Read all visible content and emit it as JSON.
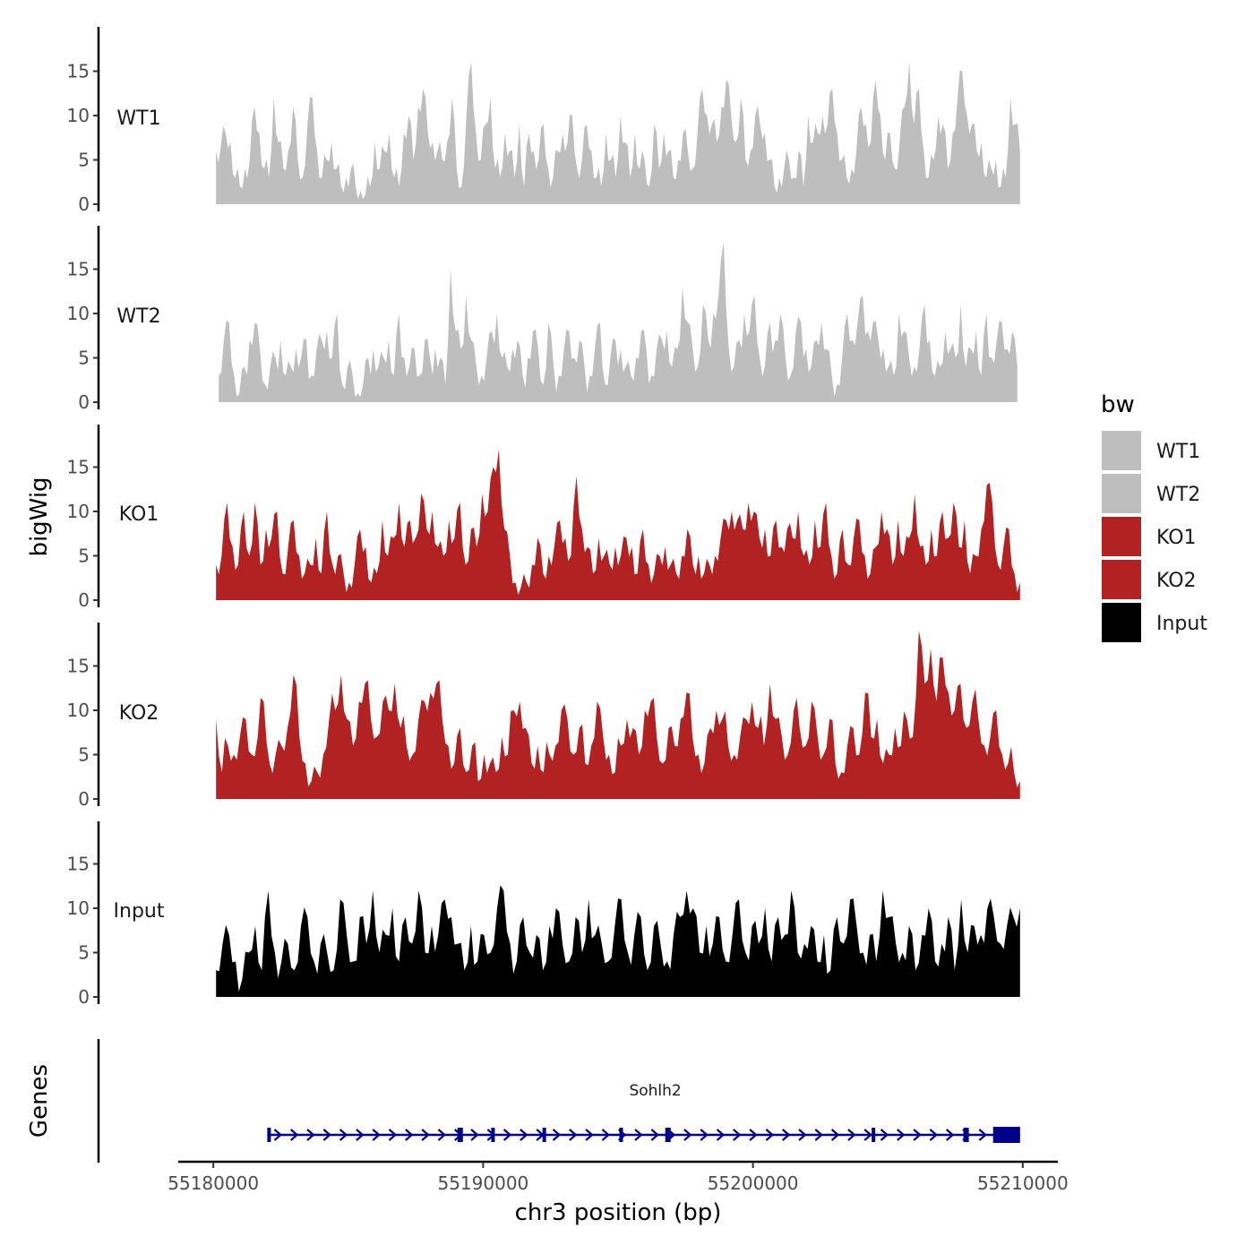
{
  "chart_data": {
    "type": "area",
    "title": "",
    "xlabel": "chr3 position (bp)",
    "ylabel": "bigWig",
    "genes_label": "Genes",
    "xlim": [
      55178700,
      55211300
    ],
    "ylim": [
      0,
      20
    ],
    "x_ticks": [
      55180000,
      55190000,
      55200000,
      55210000
    ],
    "x_tick_labels": [
      "55180000",
      "55190000",
      "55200000",
      "55210000"
    ],
    "y_ticks": [
      0,
      5,
      10,
      15
    ],
    "y_tick_labels": [
      "0",
      "5",
      "10",
      "15"
    ],
    "legend": {
      "title": "bw",
      "position": "right",
      "entries": [
        {
          "label": "WT1",
          "color": "#bebebe"
        },
        {
          "label": "WT2",
          "color": "#bebebe"
        },
        {
          "label": "KO1",
          "color": "#b22222"
        },
        {
          "label": "KO2",
          "color": "#b22222"
        },
        {
          "label": "Input",
          "color": "#000000"
        }
      ]
    },
    "series": [
      {
        "name": "WT1",
        "color": "#bebebe",
        "x_start": 55180100,
        "x_end": 55209900,
        "values": [
          6,
          6.5,
          8,
          7,
          3,
          2,
          4,
          5,
          11,
          8,
          4,
          3,
          12,
          7,
          4,
          6,
          11,
          5,
          3,
          9,
          12,
          6,
          3,
          5,
          7,
          4,
          2,
          3,
          4,
          2,
          1.5,
          1,
          2,
          7,
          4,
          6,
          8,
          3,
          2,
          8,
          10,
          5,
          11,
          13,
          8,
          7,
          6,
          5,
          7,
          12,
          4,
          2,
          10,
          16,
          8,
          5,
          9,
          12,
          4,
          3,
          8,
          6,
          3,
          9,
          2,
          8,
          6,
          5,
          9,
          4,
          3,
          6,
          8,
          7,
          10,
          4,
          5,
          9,
          6,
          3,
          2,
          8,
          5,
          3,
          10,
          7,
          3,
          8,
          4,
          5,
          2,
          9,
          4,
          8,
          6,
          3,
          5,
          8,
          6,
          4,
          8,
          13,
          10,
          9,
          7,
          11,
          14,
          10,
          7,
          12,
          5,
          6,
          10,
          9,
          8,
          5,
          2,
          3,
          4,
          5,
          3,
          6,
          2,
          10,
          7,
          8,
          10,
          9,
          13,
          8,
          5,
          3,
          4,
          6,
          11,
          9,
          7,
          14,
          10,
          5,
          8,
          4,
          7,
          11,
          16,
          9,
          13,
          6,
          3,
          5,
          10,
          9,
          4,
          8,
          12,
          15,
          10,
          9,
          6,
          7,
          3,
          4,
          5,
          2,
          3,
          12,
          9,
          6
        ],
        "noise": [
          2,
          2,
          1.5,
          2,
          2,
          1.5,
          3,
          2,
          1.5,
          2,
          2,
          1.5
        ]
      },
      {
        "name": "WT2",
        "color": "#bebebe",
        "x_start": 55180200,
        "x_end": 55209800,
        "values": [
          3,
          7,
          9,
          3,
          1,
          4,
          7,
          9,
          6,
          2,
          4,
          5,
          7,
          3,
          4,
          6,
          5,
          7,
          3,
          6,
          7,
          8,
          5,
          10,
          2,
          4,
          3,
          1,
          2,
          5,
          6,
          4,
          5,
          7,
          3,
          10,
          5,
          4,
          6,
          3,
          7,
          5,
          6,
          5,
          2,
          15,
          8,
          6,
          12,
          7,
          4,
          3,
          5,
          8,
          10,
          5,
          4,
          6,
          7,
          3,
          5,
          8,
          6,
          2,
          9,
          4,
          3,
          6,
          8,
          5,
          7,
          4,
          3,
          6,
          9,
          2,
          5,
          7,
          6,
          4,
          3,
          5,
          8,
          6,
          3,
          6,
          7,
          8,
          4,
          6,
          13,
          9,
          6,
          4,
          11,
          7,
          10,
          12,
          18,
          6,
          4,
          7,
          10,
          8,
          12,
          5,
          4,
          9,
          7,
          10,
          5,
          3,
          8,
          9,
          6,
          4,
          7,
          9,
          6,
          3,
          2,
          5,
          10,
          7,
          9,
          12,
          8,
          9,
          7,
          6,
          4,
          3,
          10,
          8,
          5,
          4,
          6,
          11,
          7,
          3,
          4,
          8,
          6,
          5,
          11,
          4,
          6,
          8,
          3,
          10,
          5,
          7,
          9,
          6,
          8,
          4
        ],
        "noise": [
          1.5,
          2,
          2,
          1.5,
          3,
          2,
          1.5,
          2,
          2,
          1.5,
          2,
          3
        ]
      },
      {
        "name": "KO1",
        "color": "#b22222",
        "x_start": 55180100,
        "x_end": 55209900,
        "values": [
          4,
          5,
          11,
          6,
          4,
          10,
          5,
          11,
          4,
          8,
          7,
          10,
          3,
          6,
          9,
          5,
          3,
          4,
          7,
          3,
          10,
          4,
          5,
          3,
          2,
          4,
          8,
          6,
          2,
          3,
          9,
          5,
          7,
          11,
          6,
          9,
          7,
          12,
          8,
          10,
          6,
          5,
          9,
          7,
          11,
          4,
          8,
          6,
          12,
          10,
          15,
          17,
          8,
          5,
          2,
          1.5,
          2,
          4,
          7,
          3,
          5,
          6,
          9,
          7,
          5,
          14,
          8,
          6,
          3,
          7,
          5,
          4,
          6,
          5,
          7,
          6,
          3,
          8,
          4,
          3,
          5,
          6,
          4,
          3,
          5,
          8,
          4,
          5,
          3,
          4,
          5,
          7,
          9,
          10,
          9,
          8,
          11,
          10,
          7,
          8,
          5,
          9,
          6,
          8,
          7,
          10,
          5,
          4,
          9,
          6,
          11,
          5,
          3,
          8,
          4,
          7,
          9,
          5,
          3,
          6,
          10,
          8,
          4,
          9,
          5,
          7,
          12,
          6,
          4,
          8,
          5,
          10,
          7,
          11,
          6,
          9,
          3,
          5,
          8,
          13,
          11,
          4,
          6,
          8,
          3,
          2
        ],
        "noise": [
          2,
          2,
          3,
          1.5,
          2,
          2,
          1.5,
          2,
          3,
          1.5,
          2,
          2
        ]
      },
      {
        "name": "KO2",
        "color": "#b22222",
        "x_start": 55180100,
        "x_end": 55209900,
        "values": [
          9,
          3,
          6,
          5,
          7,
          9,
          5,
          7,
          11,
          4,
          5,
          6,
          8,
          14,
          7,
          4,
          2,
          3,
          5,
          9,
          10,
          14,
          9,
          6,
          11,
          13,
          9,
          7,
          11,
          10,
          13,
          8,
          6,
          5,
          9,
          11,
          12,
          13,
          9,
          6,
          4,
          8,
          3,
          6,
          2,
          5,
          4,
          3,
          7,
          5,
          10,
          11,
          8,
          4,
          6,
          3,
          5,
          6,
          10,
          9,
          5,
          8,
          4,
          6,
          11,
          7,
          5,
          3,
          6,
          9,
          8,
          5,
          10,
          11,
          7,
          4,
          8,
          6,
          9,
          12,
          7,
          5,
          4,
          8,
          10,
          9,
          6,
          5,
          7,
          9,
          11,
          8,
          6,
          13,
          9,
          7,
          5,
          10,
          8,
          6,
          11,
          7,
          5,
          9,
          4,
          3,
          6,
          8,
          5,
          12,
          7,
          9,
          4,
          5,
          8,
          6,
          9,
          7,
          19,
          13,
          17,
          11,
          16,
          12,
          10,
          13,
          8,
          11,
          9,
          6,
          7,
          10,
          5,
          4,
          3,
          2
        ],
        "noise": [
          2,
          1.5,
          2,
          3,
          2,
          1.5,
          2,
          2,
          3,
          1.5,
          2,
          2
        ]
      },
      {
        "name": "Input",
        "color": "#000000",
        "x_start": 55180100,
        "x_end": 55209900,
        "values": [
          3,
          6,
          7,
          4,
          2,
          5,
          8,
          3,
          12,
          5,
          4,
          6,
          3,
          8,
          9,
          4,
          6,
          5,
          3,
          11,
          7,
          4,
          9,
          6,
          12,
          5,
          7,
          10,
          4,
          9,
          6,
          12,
          5,
          8,
          7,
          11,
          9,
          6,
          3,
          8,
          4,
          7,
          5,
          10,
          12,
          6,
          4,
          9,
          5,
          7,
          3,
          8,
          10,
          6,
          4,
          9,
          5,
          11,
          7,
          6,
          4,
          8,
          11,
          5,
          7,
          9,
          3,
          8,
          6,
          4,
          7,
          9,
          12,
          10,
          5,
          8,
          6,
          9,
          4,
          7,
          11,
          5,
          8,
          6,
          10,
          4,
          9,
          7,
          12,
          5,
          6,
          8,
          4,
          7,
          3,
          9,
          6,
          11,
          8,
          5,
          7,
          4,
          12,
          9,
          6,
          5,
          8,
          3,
          7,
          10,
          4,
          6,
          9,
          3,
          11,
          5,
          8,
          7,
          10,
          9,
          6,
          8,
          9,
          10
        ],
        "noise": [
          2,
          2,
          1.5,
          2,
          1.5,
          2,
          2,
          3,
          1.5,
          2,
          2,
          1.5
        ]
      }
    ],
    "genes": [
      {
        "name": "Sohlh2",
        "color": "#00008b",
        "strand": "+",
        "start": 55182000,
        "end": 55209900,
        "exons": [
          [
            55182000,
            55182080
          ],
          [
            55189050,
            55189250
          ],
          [
            55190300,
            55190420
          ],
          [
            55192200,
            55192300
          ],
          [
            55195050,
            55195150
          ],
          [
            55196750,
            55196950
          ],
          [
            55204400,
            55204500
          ],
          [
            55207800,
            55208000
          ],
          [
            55208900,
            55209900
          ]
        ]
      }
    ]
  }
}
